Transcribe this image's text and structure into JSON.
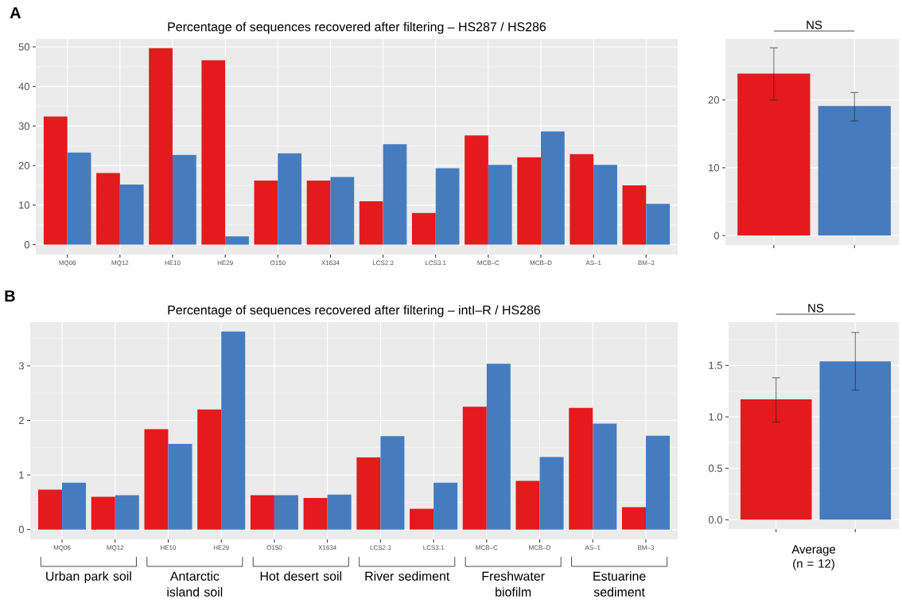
{
  "chart_data": [
    {
      "type": "bar",
      "title": "Percentage of sequences recovered after filtering – HS287 / HS286",
      "categories": [
        "MQ06",
        "MQ12",
        "HE10",
        "HE29",
        "O150",
        "X1634",
        "LCS2.3",
        "LCS3.1",
        "MCB–C",
        "MCB–D",
        "AS–1",
        "BM–3"
      ],
      "series": [
        {
          "color": "#e41a1c",
          "values": [
            32.4,
            18.1,
            49.7,
            46.6,
            16.2,
            16.2,
            11.0,
            8.0,
            27.6,
            22.1,
            22.9,
            15.0
          ]
        },
        {
          "color": "#457cc0",
          "values": [
            23.3,
            15.2,
            22.7,
            2.1,
            23.1,
            17.1,
            25.4,
            19.3,
            20.2,
            28.6,
            20.2,
            10.3
          ]
        }
      ],
      "ylim": [
        -2.5,
        52
      ],
      "yticks": [
        0,
        10,
        20,
        30,
        40,
        50
      ],
      "grid": true,
      "annotations": [
        "A"
      ]
    },
    {
      "type": "bar",
      "categories": [
        null,
        null
      ],
      "values": [
        23.9,
        19.1
      ],
      "colors": [
        "#e41a1c",
        "#457cc0"
      ],
      "errors": [
        [
          20.0,
          27.7
        ],
        [
          16.9,
          21.1
        ]
      ],
      "ylim": [
        -1.4,
        29
      ],
      "yticks": [
        0,
        10,
        20
      ],
      "grid": true,
      "annotations": [
        "NS"
      ]
    },
    {
      "type": "bar",
      "title": "Percentage of sequences recovered after filtering – intI–R / HS286",
      "categories": [
        "MQ06",
        "MQ12",
        "HE10",
        "HE29",
        "O150",
        "X1634",
        "LCS2.3",
        "LCS3.1",
        "MCB–C",
        "MCB–D",
        "AS–1",
        "BM–3"
      ],
      "series": [
        {
          "color": "#e41a1c",
          "values": [
            0.73,
            0.6,
            1.84,
            2.2,
            0.63,
            0.58,
            1.32,
            0.38,
            2.25,
            0.89,
            2.23,
            0.41
          ]
        },
        {
          "color": "#457cc0",
          "values": [
            0.86,
            0.63,
            1.57,
            3.63,
            0.63,
            0.64,
            1.71,
            0.86,
            3.04,
            1.33,
            1.94,
            1.72
          ]
        }
      ],
      "ylim": [
        -0.18,
        3.8
      ],
      "yticks": [
        0,
        1,
        2,
        3
      ],
      "grid": true,
      "annotations": [
        "B",
        "Urban park soil",
        "Antarctic island soil",
        "Hot desert soil",
        "River sediment",
        "Freshwater biofilm",
        "Estuarine sediment"
      ]
    },
    {
      "type": "bar",
      "xlabel": "Average (n = 12)",
      "categories": [
        null,
        null
      ],
      "values": [
        1.17,
        1.54
      ],
      "colors": [
        "#e41a1c",
        "#457cc0"
      ],
      "errors": [
        [
          0.95,
          1.38
        ],
        [
          1.26,
          1.82
        ]
      ],
      "ylim": [
        -0.09,
        1.92
      ],
      "yticks": [
        {
          "value": 0,
          "label": "0.0"
        },
        0.5,
        {
          "value": 1,
          "label": "1.0"
        },
        1.5
      ],
      "grid": true,
      "annotations": [
        "NS"
      ]
    }
  ]
}
